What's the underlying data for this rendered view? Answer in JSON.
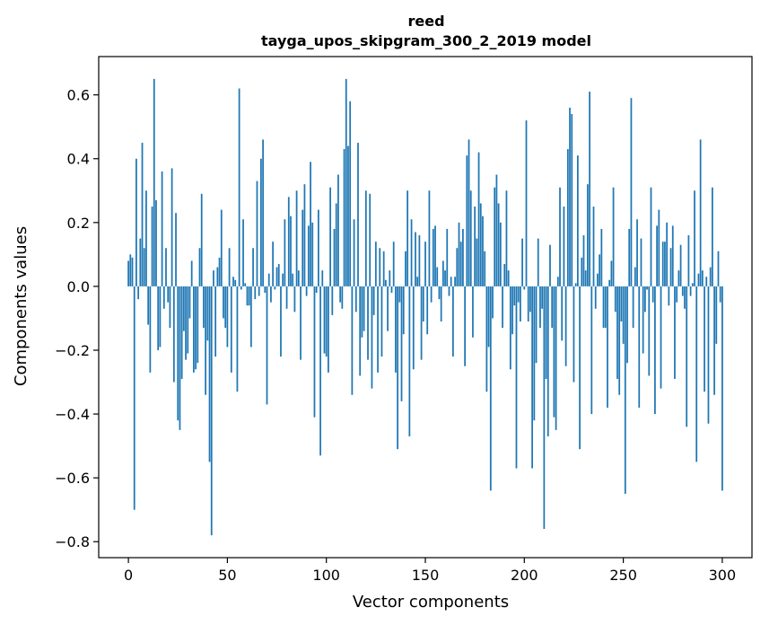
{
  "chart_data": {
    "type": "bar",
    "title": "reed",
    "subtitle": "tayga_upos_skipgram_300_2_2019 model",
    "xlabel": "Vector components",
    "ylabel": "Components values",
    "xlim": [
      -15,
      315
    ],
    "ylim": [
      -0.85,
      0.72
    ],
    "xticks": [
      0,
      50,
      100,
      150,
      200,
      250,
      300
    ],
    "yticks": [
      -0.8,
      -0.6,
      -0.4,
      -0.2,
      0.0,
      0.2,
      0.4,
      0.6
    ],
    "ytick_labels": [
      "−0.8",
      "−0.6",
      "−0.4",
      "−0.2",
      "0.0",
      "0.2",
      "0.4",
      "0.6"
    ],
    "bar_color": "#1f77b4",
    "values": [
      0.08,
      0.1,
      0.09,
      -0.7,
      0.4,
      -0.04,
      0.15,
      0.45,
      0.12,
      0.3,
      -0.12,
      -0.27,
      0.25,
      0.65,
      0.27,
      -0.2,
      -0.19,
      0.36,
      -0.07,
      0.12,
      -0.05,
      -0.13,
      0.37,
      -0.3,
      0.23,
      -0.42,
      -0.45,
      -0.29,
      -0.14,
      -0.23,
      -0.21,
      -0.1,
      0.08,
      -0.27,
      -0.26,
      -0.24,
      0.12,
      0.29,
      -0.13,
      -0.34,
      -0.17,
      -0.55,
      -0.78,
      0.05,
      -0.22,
      0.06,
      0.09,
      0.24,
      -0.1,
      -0.13,
      -0.19,
      0.12,
      -0.27,
      0.03,
      0.02,
      -0.33,
      0.62,
      -0.01,
      0.21,
      0.01,
      -0.06,
      -0.06,
      -0.19,
      0.12,
      -0.04,
      0.33,
      -0.03,
      0.4,
      0.46,
      -0.02,
      -0.37,
      0.04,
      -0.05,
      0.14,
      -0.01,
      0.06,
      0.07,
      -0.22,
      0.04,
      0.21,
      -0.07,
      0.28,
      0.22,
      0.04,
      -0.08,
      0.3,
      0.05,
      -0.23,
      0.24,
      0.32,
      -0.03,
      0.19,
      0.39,
      0.2,
      -0.41,
      -0.02,
      0.24,
      -0.53,
      0.05,
      -0.21,
      -0.22,
      -0.27,
      0.31,
      -0.09,
      0.18,
      0.26,
      0.35,
      -0.05,
      -0.07,
      0.43,
      0.65,
      0.44,
      0.58,
      -0.34,
      0.21,
      -0.08,
      0.45,
      -0.28,
      -0.16,
      -0.14,
      0.3,
      -0.23,
      0.29,
      -0.32,
      -0.09,
      0.14,
      -0.27,
      0.12,
      -0.22,
      0.11,
      0.02,
      -0.14,
      0.05,
      -0.02,
      0.14,
      -0.27,
      -0.51,
      -0.05,
      -0.36,
      -0.15,
      0.11,
      0.3,
      -0.47,
      0.21,
      -0.26,
      0.17,
      0.03,
      0.16,
      -0.23,
      -0.11,
      0.14,
      -0.15,
      0.3,
      -0.05,
      0.18,
      0.19,
      0.06,
      -0.04,
      -0.11,
      0.08,
      0.05,
      0.18,
      -0.03,
      0.03,
      -0.22,
      0.03,
      0.12,
      0.2,
      0.14,
      0.18,
      -0.25,
      0.41,
      0.46,
      0.3,
      -0.16,
      0.25,
      0.15,
      0.42,
      0.26,
      0.22,
      0.11,
      -0.33,
      -0.19,
      -0.64,
      -0.1,
      0.31,
      0.35,
      0.26,
      0.2,
      -0.13,
      0.07,
      0.3,
      0.05,
      -0.26,
      -0.15,
      -0.06,
      -0.57,
      -0.05,
      -0.11,
      0.15,
      -0.01,
      0.52,
      -0.11,
      -0.08,
      -0.57,
      -0.42,
      -0.24,
      0.15,
      -0.13,
      -0.07,
      -0.76,
      -0.29,
      -0.47,
      0.13,
      -0.13,
      -0.41,
      -0.45,
      0.03,
      0.31,
      -0.17,
      0.25,
      -0.25,
      0.43,
      0.56,
      0.54,
      -0.3,
      0.01,
      0.41,
      -0.51,
      0.09,
      0.16,
      0.05,
      0.32,
      0.61,
      -0.4,
      0.25,
      -0.07,
      0.04,
      0.1,
      0.18,
      -0.13,
      -0.13,
      -0.38,
      0.02,
      0.08,
      0.31,
      -0.08,
      -0.29,
      -0.34,
      -0.11,
      -0.18,
      -0.65,
      -0.24,
      0.18,
      0.59,
      -0.13,
      0.06,
      0.21,
      -0.38,
      0.15,
      -0.21,
      -0.08,
      -0.01,
      -0.28,
      0.31,
      -0.05,
      -0.4,
      0.19,
      0.24,
      -0.32,
      0.14,
      0.14,
      0.2,
      -0.06,
      0.12,
      0.19,
      -0.29,
      -0.05,
      0.05,
      0.13,
      -0.03,
      -0.07,
      -0.44,
      0.16,
      -0.03,
      0.01,
      0.3,
      -0.55,
      0.04,
      0.46,
      0.05,
      -0.33,
      0.03,
      -0.43,
      0.06,
      0.31,
      -0.34,
      -0.18,
      0.11,
      -0.05,
      -0.64
    ]
  }
}
